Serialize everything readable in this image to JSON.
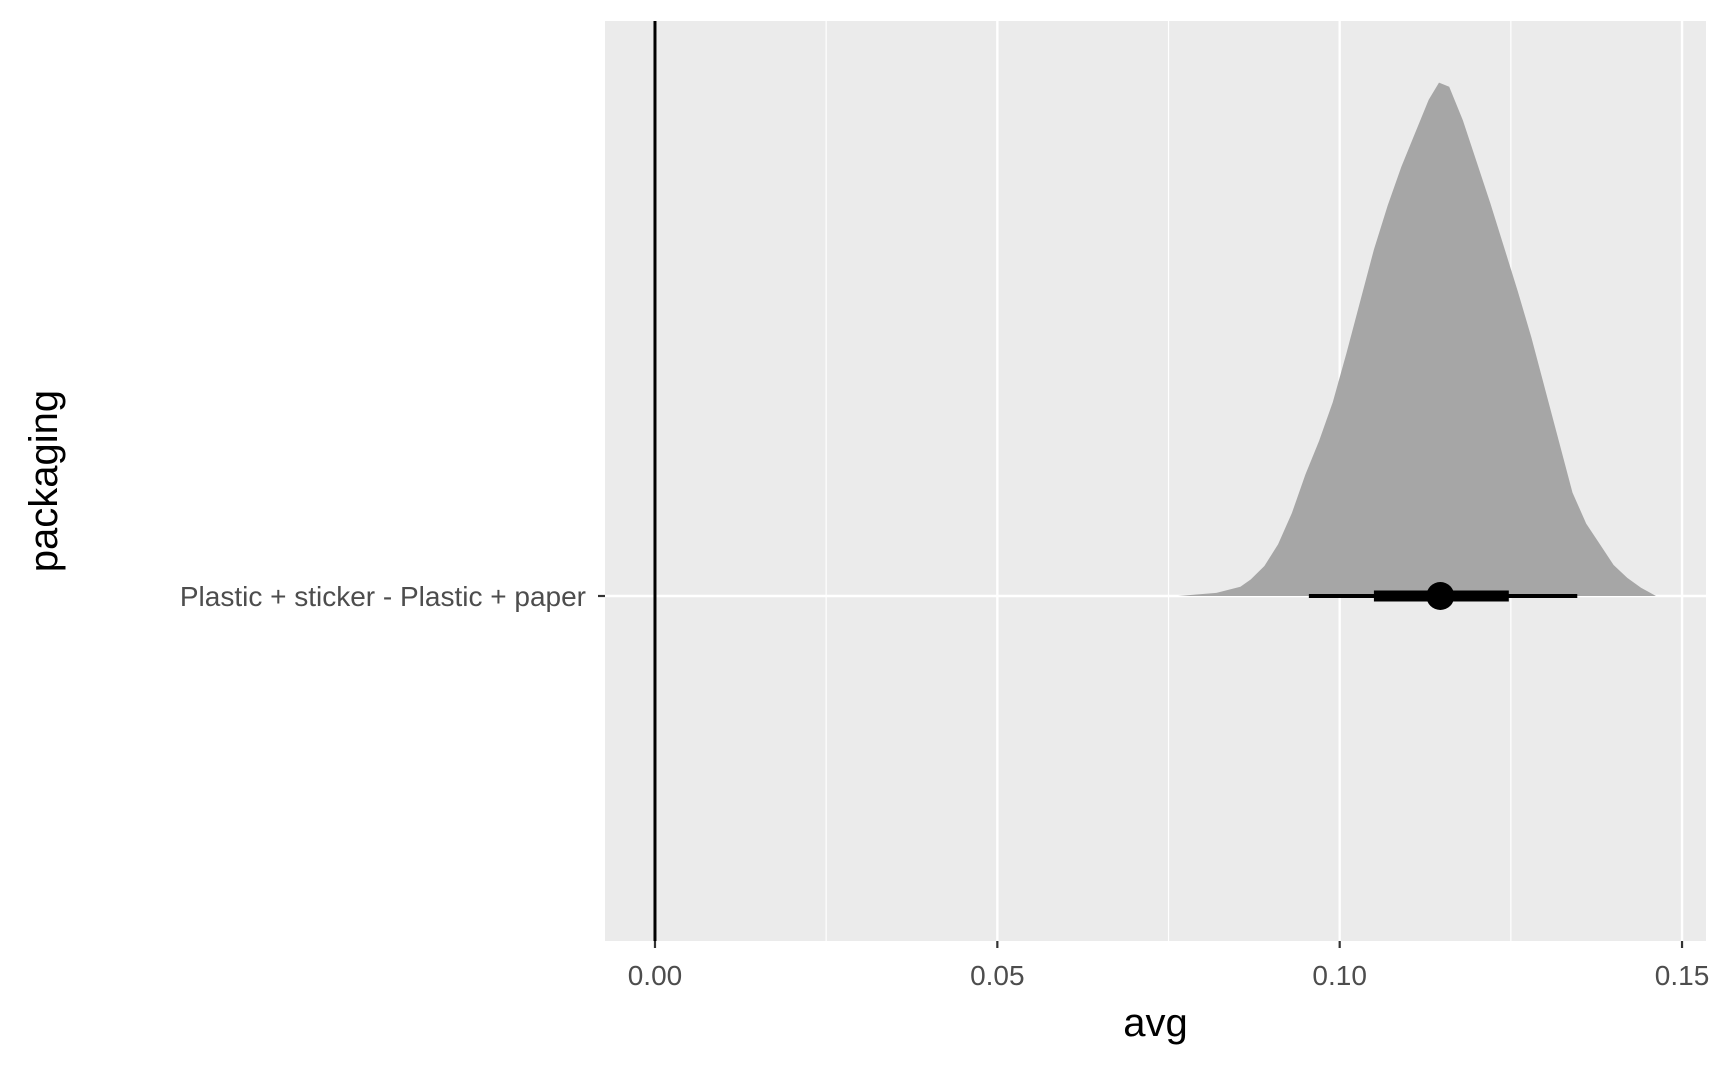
{
  "chart_data": {
    "type": "area",
    "subtype": "halfeye-density-with-interval",
    "xlabel": "avg",
    "ylabel": "packaging",
    "xlim": [
      -0.0073,
      0.1535
    ],
    "x_ticks": [
      0.0,
      0.05,
      0.1,
      0.15
    ],
    "x_tick_labels": [
      "0.00",
      "0.05",
      "0.10",
      "0.15"
    ],
    "x_minor_ticks": [
      0.025,
      0.075,
      0.125
    ],
    "categories": [
      "Plastic + sticker - Plastic + paper"
    ],
    "reference_line_x": 0,
    "grid": true,
    "legend": "none",
    "colors": {
      "panel": "#ebebeb",
      "grid": "#ffffff",
      "density": "#a6a6a6",
      "interval": "#000000",
      "reference": "#000000"
    },
    "series": [
      {
        "category": "Plastic + sticker - Plastic + paper",
        "point_estimate": 0.1147,
        "interval_66": [
          0.105,
          0.1247
        ],
        "interval_95": [
          0.0955,
          0.1347
        ],
        "density": {
          "x": [
            0.0764,
            0.082,
            0.0855,
            0.087,
            0.089,
            0.091,
            0.093,
            0.095,
            0.097,
            0.099,
            0.101,
            0.103,
            0.105,
            0.107,
            0.109,
            0.111,
            0.113,
            0.1145,
            0.116,
            0.118,
            0.12,
            0.122,
            0.124,
            0.126,
            0.128,
            0.13,
            0.132,
            0.134,
            0.136,
            0.138,
            0.14,
            0.142,
            0.144,
            0.1462
          ],
          "y": [
            0.0,
            0.006,
            0.018,
            0.032,
            0.058,
            0.1,
            0.16,
            0.235,
            0.3,
            0.375,
            0.47,
            0.57,
            0.67,
            0.755,
            0.83,
            0.895,
            0.96,
            0.993,
            0.985,
            0.92,
            0.84,
            0.76,
            0.675,
            0.59,
            0.5,
            0.4,
            0.3,
            0.2,
            0.14,
            0.1,
            0.06,
            0.035,
            0.016,
            0.0
          ]
        }
      }
    ]
  }
}
